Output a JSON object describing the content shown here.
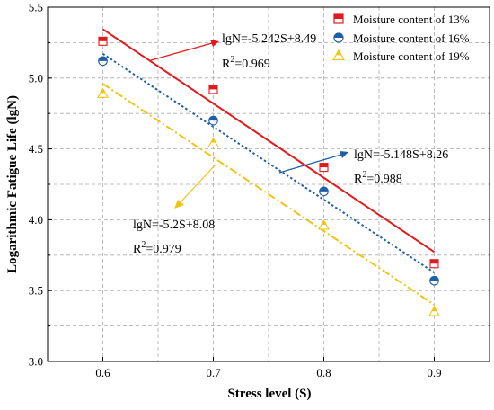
{
  "chart_data": {
    "type": "scatter",
    "xlabel": "Stress level (S)",
    "ylabel": "Logarithmic Fatigue Life (lgN)",
    "xlim": [
      0.55,
      0.95
    ],
    "ylim": [
      3.0,
      5.5
    ],
    "xticks": [
      "0.6",
      "0.7",
      "0.8",
      "0.9"
    ],
    "yticks": [
      "3.0",
      "3.5",
      "4.0",
      "4.5",
      "5.0",
      "5.5"
    ],
    "grid": true,
    "legend_position": "top-right",
    "x": [
      0.6,
      0.7,
      0.8,
      0.9
    ],
    "series": [
      {
        "name": "Moisture content of 13%",
        "color": "#e31a1c",
        "marker": "square",
        "values": [
          5.26,
          4.92,
          4.37,
          3.69
        ],
        "fit": {
          "slope": -5.242,
          "intercept": 8.49,
          "style": "solid"
        },
        "equation": "lgN=-5.242S+8.49",
        "r2": "0.969"
      },
      {
        "name": "Moisture content of 16%",
        "color": "#1f5fa8",
        "marker": "circle",
        "values": [
          5.12,
          4.7,
          4.2,
          3.57
        ],
        "fit": {
          "slope": -5.148,
          "intercept": 8.26,
          "style": "dotted"
        },
        "equation": "lgN=-5.148S+8.26",
        "r2": "0.988"
      },
      {
        "name": "Moisture content of 19%",
        "color": "#f2c40f",
        "marker": "triangle",
        "values": [
          4.89,
          4.54,
          3.96,
          3.35
        ],
        "fit": {
          "slope": -5.2,
          "intercept": 8.08,
          "style": "dash-dot"
        },
        "equation": "lgN=-5.2S+8.08",
        "r2": "0.979"
      }
    ]
  }
}
